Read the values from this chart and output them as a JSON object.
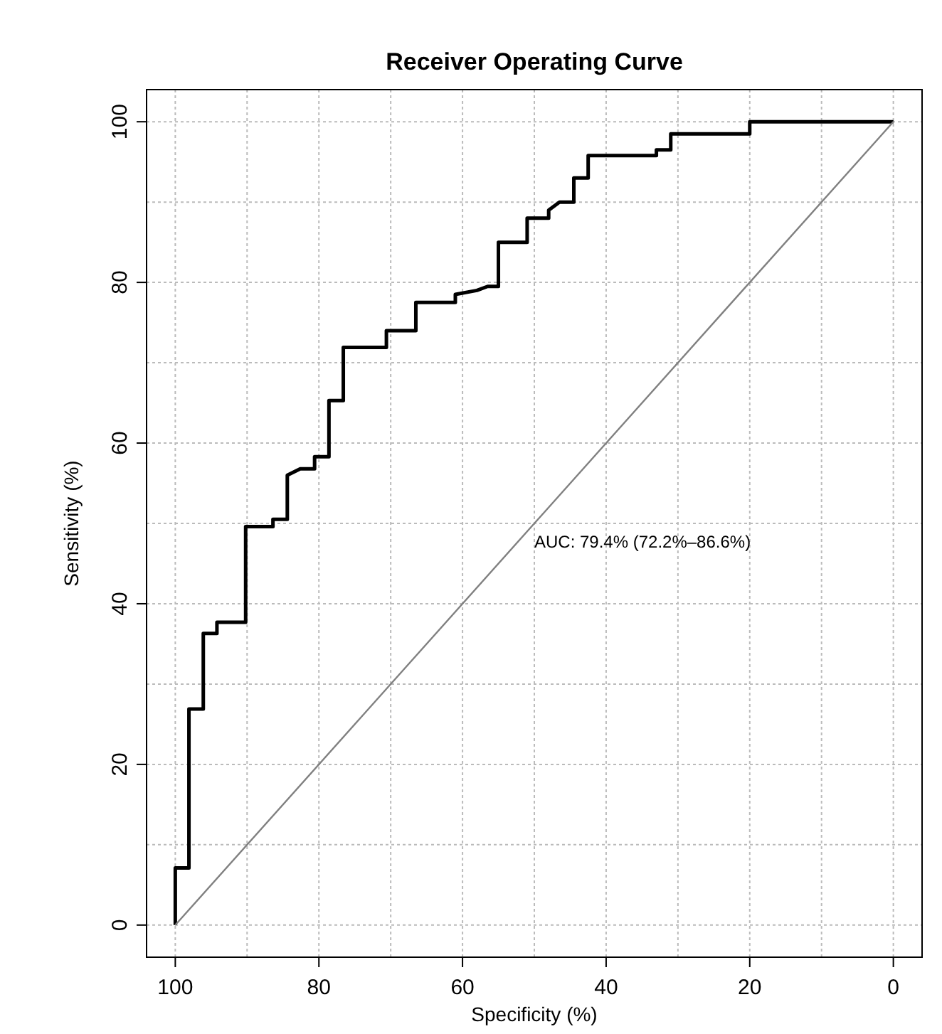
{
  "chart_data": {
    "type": "line",
    "title": "Receiver Operating Curve",
    "xlabel": "Specificity (%)",
    "ylabel": "Sensitivity (%)",
    "xlim": [
      104,
      -4
    ],
    "ylim": [
      -4,
      104
    ],
    "xticks": [
      100,
      {
        "value": 90,
        "label": null
      },
      80,
      {
        "value": 70,
        "label": null
      },
      60,
      {
        "value": 50,
        "label": null
      },
      40,
      {
        "value": 30,
        "label": null
      },
      20,
      {
        "value": 10,
        "label": null
      },
      0
    ],
    "yticks": [
      0,
      {
        "value": 10,
        "label": null
      },
      20,
      {
        "value": 30,
        "label": null
      },
      40,
      {
        "value": 50,
        "label": null
      },
      60,
      {
        "value": 70,
        "label": null
      },
      80,
      {
        "value": 90,
        "label": null
      },
      100
    ],
    "grid": true,
    "line_style": "solid",
    "marker": "none",
    "annotations": [
      "AUC: 79.4% (72.2%–86.6%)"
    ],
    "series": [
      {
        "color": "#000000",
        "x": [
          100,
          100,
          98.1,
          98.1,
          96.1,
          96.1,
          94.2,
          94.2,
          90.2,
          90.2,
          86.4,
          86.4,
          84.4,
          84.4,
          82.6,
          80.6,
          80.6,
          78.6,
          78.6,
          76.6,
          76.6,
          70.6,
          70.6,
          66.5,
          66.5,
          61,
          61,
          58,
          56.5,
          55,
          55,
          51,
          51,
          48,
          48,
          46.5,
          44.5,
          44.5,
          42.5,
          42.5,
          33,
          33,
          31,
          31,
          20,
          20,
          0
        ],
        "values": [
          0,
          7.1,
          7.1,
          26.9,
          26.9,
          36.3,
          36.3,
          37.7,
          37.7,
          49.6,
          49.6,
          50.5,
          50.5,
          56,
          56.8,
          56.8,
          58.3,
          58.3,
          65.3,
          65.3,
          71.9,
          71.9,
          74,
          74,
          77.5,
          77.5,
          78.5,
          79,
          79.5,
          79.5,
          85,
          85,
          88,
          88,
          89,
          90,
          90,
          93,
          93,
          95.8,
          95.8,
          96.5,
          96.5,
          98.5,
          98.5,
          100,
          100
        ]
      },
      {
        "color": "#808080",
        "x": [
          100,
          0
        ],
        "values": [
          0,
          100
        ]
      }
    ]
  }
}
